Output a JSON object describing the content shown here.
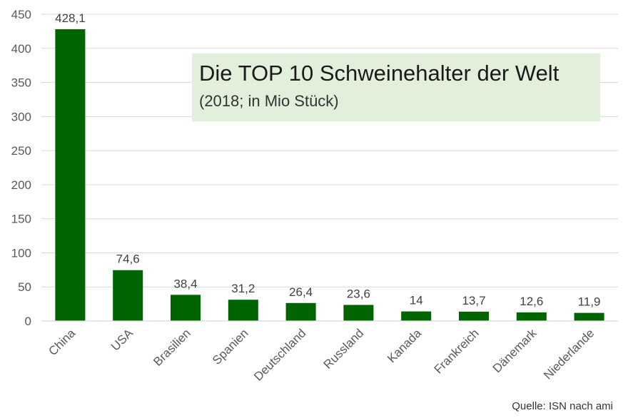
{
  "chart_data": {
    "type": "bar",
    "title": "Die TOP 10 Schweinehalter  der Welt",
    "subtitle": "(2018; in Mio Stück)",
    "source": "Quelle:  ISN nach ami",
    "categories": [
      "China",
      "USA",
      "Brasilien",
      "Spanien",
      "Deutschland",
      "Russland",
      "Kanada",
      "Frankreich",
      "Dänemark",
      "Niederlande"
    ],
    "values": [
      428.1,
      74.6,
      38.4,
      31.2,
      26.4,
      23.6,
      14,
      13.7,
      12.6,
      11.9
    ],
    "value_labels": [
      "428,1",
      "74,6",
      "38,4",
      "31,2",
      "26,4",
      "23,6",
      "14",
      "13,7",
      "12,6",
      "11,9"
    ],
    "y_ticks": [
      0,
      50,
      100,
      150,
      200,
      250,
      300,
      350,
      400,
      450
    ],
    "ylim": [
      0,
      450
    ],
    "xlabel": "",
    "ylabel": "",
    "grid": true,
    "bar_color": "#006400",
    "title_box_color": "#e2efda"
  }
}
